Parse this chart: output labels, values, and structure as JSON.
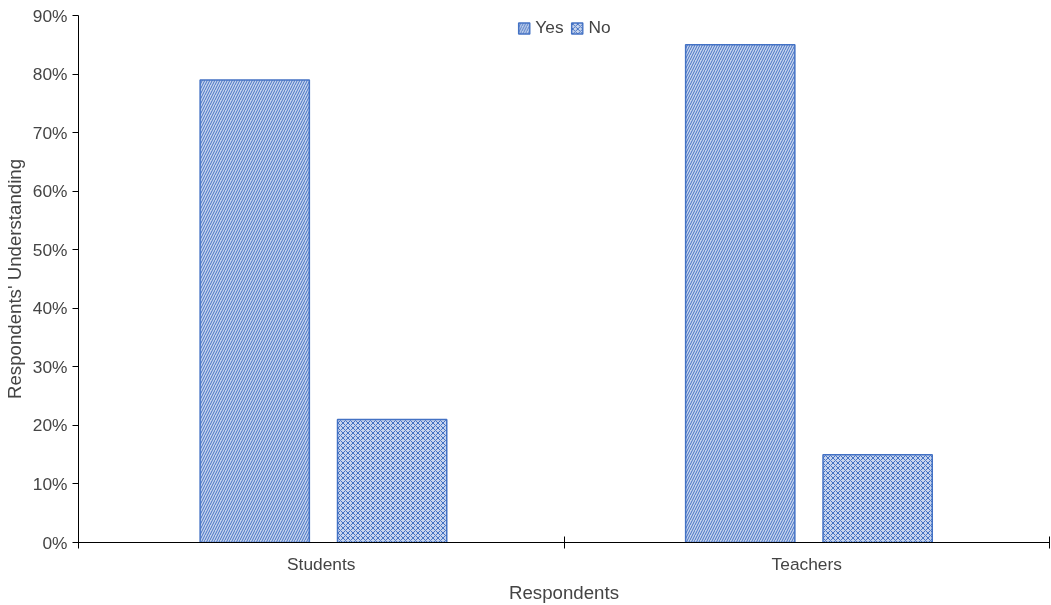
{
  "chart_data": {
    "type": "bar",
    "xlabel": "Respondents",
    "ylabel": "Respondents' Understanding",
    "categories": [
      "Students",
      "Teachers"
    ],
    "series": [
      {
        "name": "Yes",
        "color": "#4472c4",
        "values": [
          79,
          85
        ]
      },
      {
        "name": "No",
        "color": "#4472c4",
        "values": [
          21,
          15
        ]
      }
    ],
    "ylim": [
      0,
      90
    ],
    "yticks": [
      {
        "value": 0,
        "label": "0%"
      },
      {
        "value": 10,
        "label": "10%"
      },
      {
        "value": 20,
        "label": "20%"
      },
      {
        "value": 30,
        "label": "30%"
      },
      {
        "value": 40,
        "label": "40%"
      },
      {
        "value": 50,
        "label": "50%"
      },
      {
        "value": 60,
        "label": "60%"
      },
      {
        "value": 70,
        "label": "70%"
      },
      {
        "value": 80,
        "label": "80%"
      },
      {
        "value": 90,
        "label": "90%"
      }
    ],
    "grid": false,
    "legend": "top"
  }
}
